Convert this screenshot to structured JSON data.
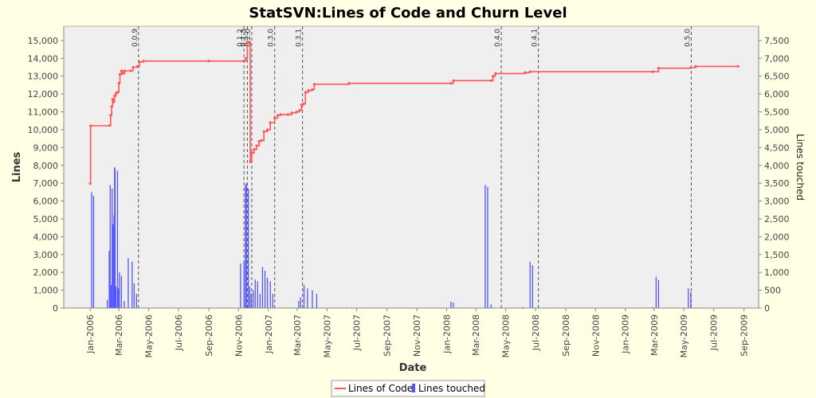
{
  "chart_data": {
    "type": "line",
    "title": "StatSVN:Lines of Code and Churn Level",
    "xlabel": "Date",
    "ylabel": "Lines",
    "ylabel_right": "Lines touched",
    "x_range": [
      "2005-11-08",
      "2009-10-01"
    ],
    "ylim": [
      0,
      15800
    ],
    "ylim_right": [
      0,
      7900
    ],
    "y_ticks": [
      0,
      1000,
      2000,
      3000,
      4000,
      5000,
      6000,
      7000,
      8000,
      9000,
      10000,
      11000,
      12000,
      13000,
      14000,
      15000
    ],
    "y_ticks_right": [
      0,
      500,
      1000,
      1500,
      2000,
      2500,
      3000,
      3500,
      4000,
      4500,
      5000,
      5500,
      6000,
      6500,
      7000,
      7500
    ],
    "x_ticks": [
      {
        "label": "Jan-2006",
        "date": "2006-01-01"
      },
      {
        "label": "Mar-2006",
        "date": "2006-03-01"
      },
      {
        "label": "May-2006",
        "date": "2006-05-01"
      },
      {
        "label": "Jul-2006",
        "date": "2006-07-01"
      },
      {
        "label": "Sep-2006",
        "date": "2006-09-01"
      },
      {
        "label": "Nov-2006",
        "date": "2006-11-01"
      },
      {
        "label": "Jan-2007",
        "date": "2007-01-01"
      },
      {
        "label": "Mar-2007",
        "date": "2007-03-01"
      },
      {
        "label": "May-2007",
        "date": "2007-05-01"
      },
      {
        "label": "Jul-2007",
        "date": "2007-07-01"
      },
      {
        "label": "Sep-2007",
        "date": "2007-09-01"
      },
      {
        "label": "Nov-2007",
        "date": "2007-11-01"
      },
      {
        "label": "Jan-2008",
        "date": "2008-01-01"
      },
      {
        "label": "Mar-2008",
        "date": "2008-03-01"
      },
      {
        "label": "May-2008",
        "date": "2008-05-01"
      },
      {
        "label": "Jul-2008",
        "date": "2008-07-01"
      },
      {
        "label": "Sep-2008",
        "date": "2008-09-01"
      },
      {
        "label": "Nov-2008",
        "date": "2008-11-01"
      },
      {
        "label": "Jan-2009",
        "date": "2009-01-01"
      },
      {
        "label": "Mar-2009",
        "date": "2009-03-01"
      },
      {
        "label": "May-2009",
        "date": "2009-05-01"
      },
      {
        "label": "Jul-2009",
        "date": "2009-07-01"
      },
      {
        "label": "Sep-2009",
        "date": "2009-09-01"
      }
    ],
    "grid": false,
    "legend_position": "bottom-center",
    "markers": [
      {
        "label": "0.0.9",
        "date": "2006-04-10"
      },
      {
        "label": "0.1.2",
        "date": "2006-11-12"
      },
      {
        "label": "0.1.3",
        "date": "2006-11-19"
      },
      {
        "label": "0.2.0",
        "date": "2006-11-28"
      },
      {
        "label": "0.3.0",
        "date": "2007-01-14"
      },
      {
        "label": "0.3.1",
        "date": "2007-03-12"
      },
      {
        "label": "0.4.0",
        "date": "2008-04-22"
      },
      {
        "label": "0.4.1",
        "date": "2008-07-07"
      },
      {
        "label": "0.5.0",
        "date": "2009-05-16"
      }
    ],
    "series": [
      {
        "name": "Lines of Code",
        "color": "#ff5555",
        "axis": "left",
        "points": [
          [
            "2006-01-01",
            6980
          ],
          [
            "2006-01-02",
            10220
          ],
          [
            "2006-02-10",
            10240
          ],
          [
            "2006-02-12",
            10800
          ],
          [
            "2006-02-14",
            11300
          ],
          [
            "2006-02-16",
            11700
          ],
          [
            "2006-02-18",
            11550
          ],
          [
            "2006-02-20",
            11900
          ],
          [
            "2006-02-23",
            12050
          ],
          [
            "2006-02-26",
            12100
          ],
          [
            "2006-03-01",
            12600
          ],
          [
            "2006-03-03",
            13100
          ],
          [
            "2006-03-06",
            13300
          ],
          [
            "2006-03-09",
            13150
          ],
          [
            "2006-03-13",
            13300
          ],
          [
            "2006-03-25",
            13300
          ],
          [
            "2006-03-30",
            13500
          ],
          [
            "2006-04-08",
            13550
          ],
          [
            "2006-04-12",
            13800
          ],
          [
            "2006-04-20",
            13850
          ],
          [
            "2006-09-01",
            13850
          ],
          [
            "2006-11-12",
            13850
          ],
          [
            "2006-11-16",
            14000
          ],
          [
            "2006-11-19",
            14900
          ],
          [
            "2006-11-23",
            14900
          ],
          [
            "2006-11-25",
            8200
          ],
          [
            "2006-11-28",
            8700
          ],
          [
            "2006-12-03",
            8900
          ],
          [
            "2006-12-08",
            9100
          ],
          [
            "2006-12-13",
            9350
          ],
          [
            "2006-12-18",
            9400
          ],
          [
            "2006-12-23",
            9900
          ],
          [
            "2006-12-30",
            10000
          ],
          [
            "2007-01-05",
            10400
          ],
          [
            "2007-01-14",
            10650
          ],
          [
            "2007-01-20",
            10800
          ],
          [
            "2007-01-26",
            10850
          ],
          [
            "2007-02-10",
            10850
          ],
          [
            "2007-02-18",
            10950
          ],
          [
            "2007-02-28",
            11000
          ],
          [
            "2007-03-06",
            11100
          ],
          [
            "2007-03-10",
            11400
          ],
          [
            "2007-03-14",
            11450
          ],
          [
            "2007-03-18",
            12100
          ],
          [
            "2007-03-24",
            12200
          ],
          [
            "2007-04-01",
            12250
          ],
          [
            "2007-04-05",
            12550
          ],
          [
            "2007-06-15",
            12600
          ],
          [
            "2008-01-10",
            12600
          ],
          [
            "2008-01-15",
            12750
          ],
          [
            "2008-04-01",
            12750
          ],
          [
            "2008-04-05",
            13000
          ],
          [
            "2008-04-10",
            13150
          ],
          [
            "2008-06-10",
            13200
          ],
          [
            "2008-06-20",
            13250
          ],
          [
            "2009-02-26",
            13250
          ],
          [
            "2009-03-10",
            13450
          ],
          [
            "2009-05-15",
            13480
          ],
          [
            "2009-05-25",
            13550
          ],
          [
            "2009-08-20",
            13550
          ]
        ]
      },
      {
        "name": "Lines touched",
        "color": "#5555ff",
        "axis": "right",
        "type": "bar",
        "points": [
          [
            "2006-01-04",
            3250
          ],
          [
            "2006-01-08",
            3150
          ],
          [
            "2006-02-05",
            230
          ],
          [
            "2006-02-09",
            1600
          ],
          [
            "2006-02-11",
            3450
          ],
          [
            "2006-02-13",
            650
          ],
          [
            "2006-02-15",
            3350
          ],
          [
            "2006-02-17",
            2350
          ],
          [
            "2006-02-19",
            2600
          ],
          [
            "2006-02-20",
            3950
          ],
          [
            "2006-02-21",
            3900
          ],
          [
            "2006-02-23",
            600
          ],
          [
            "2006-02-26",
            3850
          ],
          [
            "2006-02-28",
            550
          ],
          [
            "2006-03-02",
            1000
          ],
          [
            "2006-03-06",
            900
          ],
          [
            "2006-03-12",
            200
          ],
          [
            "2006-03-20",
            1400
          ],
          [
            "2006-03-28",
            1300
          ],
          [
            "2006-04-01",
            700
          ],
          [
            "2006-04-06",
            400
          ],
          [
            "2006-09-01",
            15
          ],
          [
            "2006-11-05",
            1250
          ],
          [
            "2006-11-12",
            1300
          ],
          [
            "2006-11-15",
            3450
          ],
          [
            "2006-11-17",
            3500
          ],
          [
            "2006-11-21",
            3350
          ],
          [
            "2006-11-24",
            600
          ],
          [
            "2006-11-27",
            400
          ],
          [
            "2006-12-01",
            500
          ],
          [
            "2006-12-05",
            800
          ],
          [
            "2006-12-10",
            750
          ],
          [
            "2006-12-15",
            400
          ],
          [
            "2006-12-20",
            1150
          ],
          [
            "2006-12-25",
            1050
          ],
          [
            "2006-12-30",
            850
          ],
          [
            "2007-01-05",
            750
          ],
          [
            "2007-01-10",
            400
          ],
          [
            "2007-03-04",
            200
          ],
          [
            "2007-03-08",
            300
          ],
          [
            "2007-03-15",
            650
          ],
          [
            "2007-03-22",
            550
          ],
          [
            "2007-04-01",
            500
          ],
          [
            "2007-04-10",
            400
          ],
          [
            "2007-06-10",
            20
          ],
          [
            "2008-01-10",
            180
          ],
          [
            "2008-01-15",
            150
          ],
          [
            "2008-03-20",
            3450
          ],
          [
            "2008-03-25",
            3400
          ],
          [
            "2008-04-01",
            100
          ],
          [
            "2008-06-05",
            30
          ],
          [
            "2008-06-20",
            1300
          ],
          [
            "2008-06-25",
            1200
          ],
          [
            "2009-02-25",
            30
          ],
          [
            "2009-03-05",
            880
          ],
          [
            "2009-03-10",
            780
          ],
          [
            "2009-05-10",
            550
          ],
          [
            "2009-05-15",
            450
          ],
          [
            "2009-08-20",
            10
          ]
        ]
      }
    ]
  }
}
